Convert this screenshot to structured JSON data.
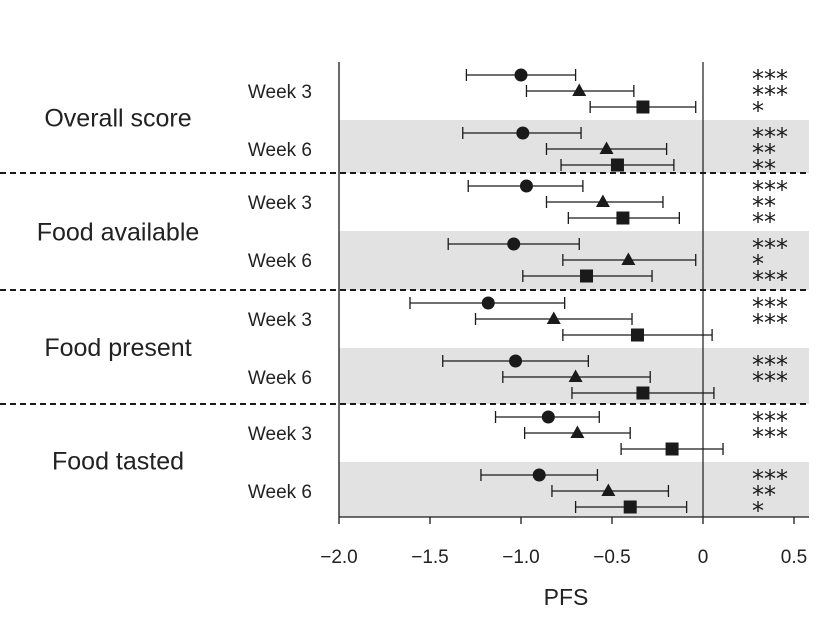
{
  "chart_data": {
    "type": "forest",
    "xlabel": "PFS",
    "xlim": [
      -2.0,
      0.55
    ],
    "xticks": [
      -2.0,
      -1.5,
      -1.0,
      -0.5,
      0,
      0.5
    ],
    "xtick_labels": [
      "−2.0",
      "−1.5",
      "−1.0",
      "−0.5",
      "0",
      "0.5"
    ],
    "reference_line": 0,
    "marker_shapes": [
      "circle",
      "triangle",
      "square"
    ],
    "colors": {
      "marker": "#1a1a1a",
      "shade": "#e2e2e2",
      "line": "#1a1a1a"
    },
    "groups": [
      {
        "label": "Overall score",
        "weeks": [
          {
            "label": "Week 3",
            "shaded": false,
            "points": [
              {
                "marker": "circle",
                "est": -1.0,
                "lo": -1.3,
                "hi": -0.7,
                "sig": "***"
              },
              {
                "marker": "triangle",
                "est": -0.68,
                "lo": -0.97,
                "hi": -0.38,
                "sig": "***"
              },
              {
                "marker": "square",
                "est": -0.33,
                "lo": -0.62,
                "hi": -0.04,
                "sig": "*"
              }
            ]
          },
          {
            "label": "Week 6",
            "shaded": true,
            "points": [
              {
                "marker": "circle",
                "est": -0.99,
                "lo": -1.32,
                "hi": -0.67,
                "sig": "***"
              },
              {
                "marker": "triangle",
                "est": -0.53,
                "lo": -0.86,
                "hi": -0.2,
                "sig": "**"
              },
              {
                "marker": "square",
                "est": -0.47,
                "lo": -0.78,
                "hi": -0.16,
                "sig": "**"
              }
            ]
          }
        ]
      },
      {
        "label": "Food available",
        "weeks": [
          {
            "label": "Week 3",
            "shaded": false,
            "points": [
              {
                "marker": "circle",
                "est": -0.97,
                "lo": -1.29,
                "hi": -0.66,
                "sig": "***"
              },
              {
                "marker": "triangle",
                "est": -0.55,
                "lo": -0.86,
                "hi": -0.22,
                "sig": "**"
              },
              {
                "marker": "square",
                "est": -0.44,
                "lo": -0.74,
                "hi": -0.13,
                "sig": "**"
              }
            ]
          },
          {
            "label": "Week 6",
            "shaded": true,
            "points": [
              {
                "marker": "circle",
                "est": -1.04,
                "lo": -1.4,
                "hi": -0.68,
                "sig": "***"
              },
              {
                "marker": "triangle",
                "est": -0.41,
                "lo": -0.77,
                "hi": -0.04,
                "sig": "*"
              },
              {
                "marker": "square",
                "est": -0.64,
                "lo": -0.99,
                "hi": -0.28,
                "sig": "***"
              }
            ]
          }
        ]
      },
      {
        "label": "Food present",
        "weeks": [
          {
            "label": "Week 3",
            "shaded": false,
            "points": [
              {
                "marker": "circle",
                "est": -1.18,
                "lo": -1.61,
                "hi": -0.76,
                "sig": "***"
              },
              {
                "marker": "triangle",
                "est": -0.82,
                "lo": -1.25,
                "hi": -0.39,
                "sig": "***"
              },
              {
                "marker": "square",
                "est": -0.36,
                "lo": -0.77,
                "hi": 0.05,
                "sig": ""
              }
            ]
          },
          {
            "label": "Week 6",
            "shaded": true,
            "points": [
              {
                "marker": "circle",
                "est": -1.03,
                "lo": -1.43,
                "hi": -0.63,
                "sig": "***"
              },
              {
                "marker": "triangle",
                "est": -0.7,
                "lo": -1.1,
                "hi": -0.29,
                "sig": "***"
              },
              {
                "marker": "square",
                "est": -0.33,
                "lo": -0.72,
                "hi": 0.06,
                "sig": ""
              }
            ]
          }
        ]
      },
      {
        "label": "Food tasted",
        "weeks": [
          {
            "label": "Week 3",
            "shaded": false,
            "points": [
              {
                "marker": "circle",
                "est": -0.85,
                "lo": -1.14,
                "hi": -0.57,
                "sig": "***"
              },
              {
                "marker": "triangle",
                "est": -0.69,
                "lo": -0.98,
                "hi": -0.4,
                "sig": "***"
              },
              {
                "marker": "square",
                "est": -0.17,
                "lo": -0.45,
                "hi": 0.11,
                "sig": ""
              }
            ]
          },
          {
            "label": "Week 6",
            "shaded": true,
            "points": [
              {
                "marker": "circle",
                "est": -0.9,
                "lo": -1.22,
                "hi": -0.58,
                "sig": "***"
              },
              {
                "marker": "triangle",
                "est": -0.52,
                "lo": -0.83,
                "hi": -0.19,
                "sig": "**"
              },
              {
                "marker": "square",
                "est": -0.4,
                "lo": -0.7,
                "hi": -0.09,
                "sig": "*"
              }
            ]
          }
        ]
      }
    ]
  }
}
